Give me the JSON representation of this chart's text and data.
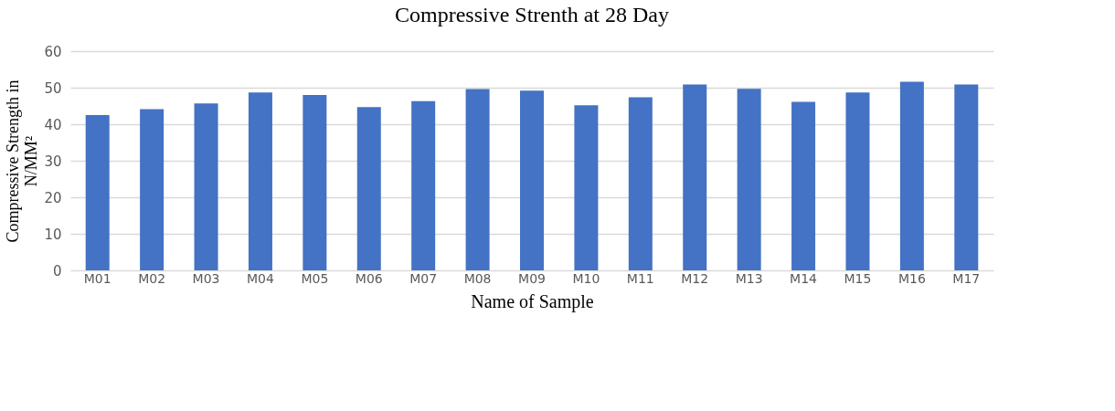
{
  "chart_data": {
    "type": "bar",
    "title": "Compressive Strenth at 28 Day",
    "xlabel": "Name of Sample",
    "ylabel": "Compressive Strength in N/MM²",
    "categories": [
      "M01",
      "M02",
      "M03",
      "M04",
      "M05",
      "M06",
      "M07",
      "M08",
      "M09",
      "M10",
      "M11",
      "M12",
      "M13",
      "M14",
      "M15",
      "M16",
      "M17"
    ],
    "values": [
      42.5,
      44.1,
      45.7,
      48.7,
      48.0,
      44.7,
      46.3,
      49.6,
      49.2,
      45.2,
      47.4,
      50.9,
      49.7,
      46.1,
      48.7,
      51.6,
      50.9
    ],
    "color": "#4472c4",
    "ylim": [
      0,
      60
    ],
    "yticks": [
      0,
      10,
      20,
      30,
      40,
      50,
      60
    ],
    "grid": "y"
  }
}
